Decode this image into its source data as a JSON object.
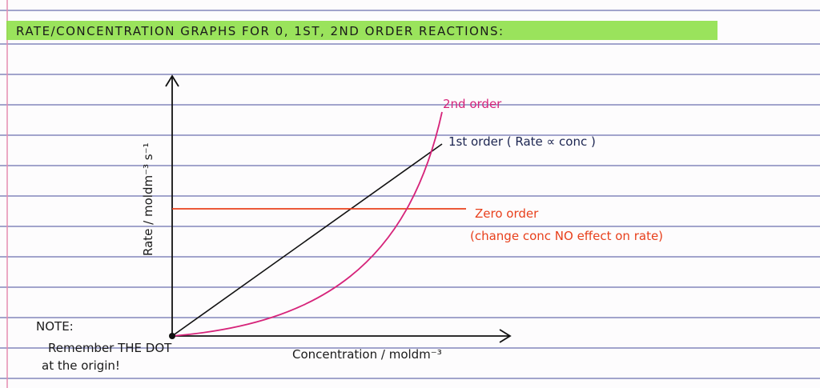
{
  "header": {
    "title": "RATE/CONCENTRATION GRAPHS FOR 0, 1ST, 2ND ORDER REACTIONS:"
  },
  "graph": {
    "y_axis_label": "Rate / moldm⁻³ s⁻¹",
    "x_axis_label": "Concentration / moldm⁻³",
    "curves": [
      {
        "label": "2nd order"
      },
      {
        "label": "1st order ( Rate ∝ conc )"
      },
      {
        "label": "Zero order",
        "note": "(change conc NO effect on rate)"
      }
    ]
  },
  "note": {
    "heading": "NOTE:",
    "lines": [
      "Remember THE DOT",
      "at the origin!"
    ]
  }
}
